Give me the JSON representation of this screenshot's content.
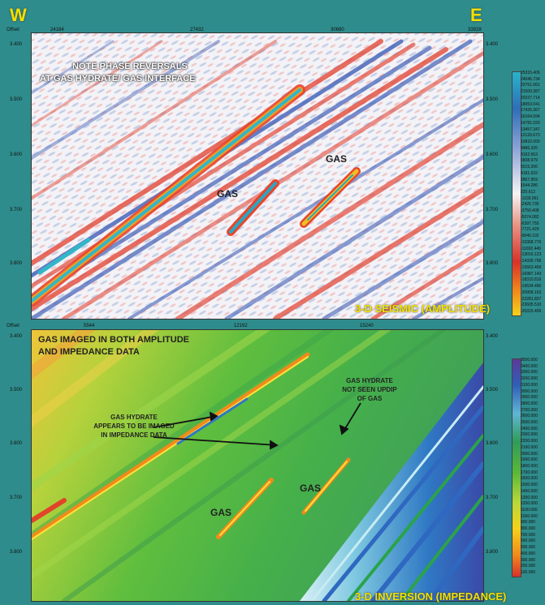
{
  "header": {
    "west": "W",
    "east": "E"
  },
  "seismic": {
    "offset_label": "Offset",
    "top_ticks": [
      "24184",
      "27432",
      "30680",
      "33928"
    ],
    "depth_ticks": [
      "3.400",
      "3.500",
      "3.600",
      "3.700",
      "3.800"
    ],
    "note_line1": "NOTE PHASE REVERSALS",
    "note_line2": "AT GAS HYDRATE/ GAS INTERFACE",
    "gas_left": "GAS",
    "gas_right": "GAS",
    "footer": "3-D SEISMIC (AMPLITUDE)",
    "colorbar_values": [
      "25315.406",
      "24046.734",
      "22761.061",
      "21500.387",
      "20227.714",
      "18953.041",
      "17426.367",
      "16164.694",
      "14781.020",
      "13457.347",
      "12133.673",
      "10810.000",
      "9486.326",
      "8162.653",
      "6838.979",
      "5515.306",
      "4191.632",
      "2867.959",
      "1544.286",
      "220.612",
      "-1103.061",
      "-2426.735",
      "-3750.408",
      "-5074.082",
      "-6397.755",
      "-7721.429",
      "-9045.102",
      "-10368.776",
      "-11692.449",
      "-13016.123",
      "-14339.796",
      "-15663.469",
      "-16987.143",
      "-18310.816",
      "-19634.490",
      "-20958.163",
      "-22281.837",
      "-23605.510",
      "-25315.406"
    ]
  },
  "impedance": {
    "offset_label": "Offset",
    "top_ticks": [
      "5544",
      "12192",
      "15240"
    ],
    "depth_ticks": [
      "3.400",
      "3.500",
      "3.600",
      "3.700",
      "3.800"
    ],
    "note_line1": "GAS IMAGED IN BOTH AMPLITUDE",
    "note_line2": "AND IMPEDANCE DATA",
    "hydrate_left_1": "GAS HYDRATE",
    "hydrate_left_2": "APPEARS TO BE IMAGED",
    "hydrate_left_3": "IN IMPEDANCE DATA",
    "hydrate_right_1": "GAS HYDRATE",
    "hydrate_right_2": "NOT SEEN UPDIP",
    "hydrate_right_3": "OF GAS",
    "gas_left": "GAS",
    "gas_right": "GAS",
    "footer": "3-D INVERSION (IMPEDANCE)",
    "colorbar_values": [
      "3500.000",
      "3400.000",
      "3300.000",
      "3200.000",
      "3100.000",
      "3000.000",
      "2900.000",
      "2800.000",
      "2700.000",
      "2600.000",
      "2500.000",
      "2400.000",
      "2300.000",
      "2200.000",
      "2100.000",
      "2000.000",
      "1900.000",
      "1800.000",
      "1700.000",
      "1600.000",
      "1500.000",
      "1400.000",
      "1300.000",
      "1200.000",
      "1100.000",
      "1000.000",
      "900.000",
      "800.000",
      "700.000",
      "600.000",
      "500.000",
      "400.000",
      "300.000",
      "200.000",
      "100.000"
    ]
  }
}
